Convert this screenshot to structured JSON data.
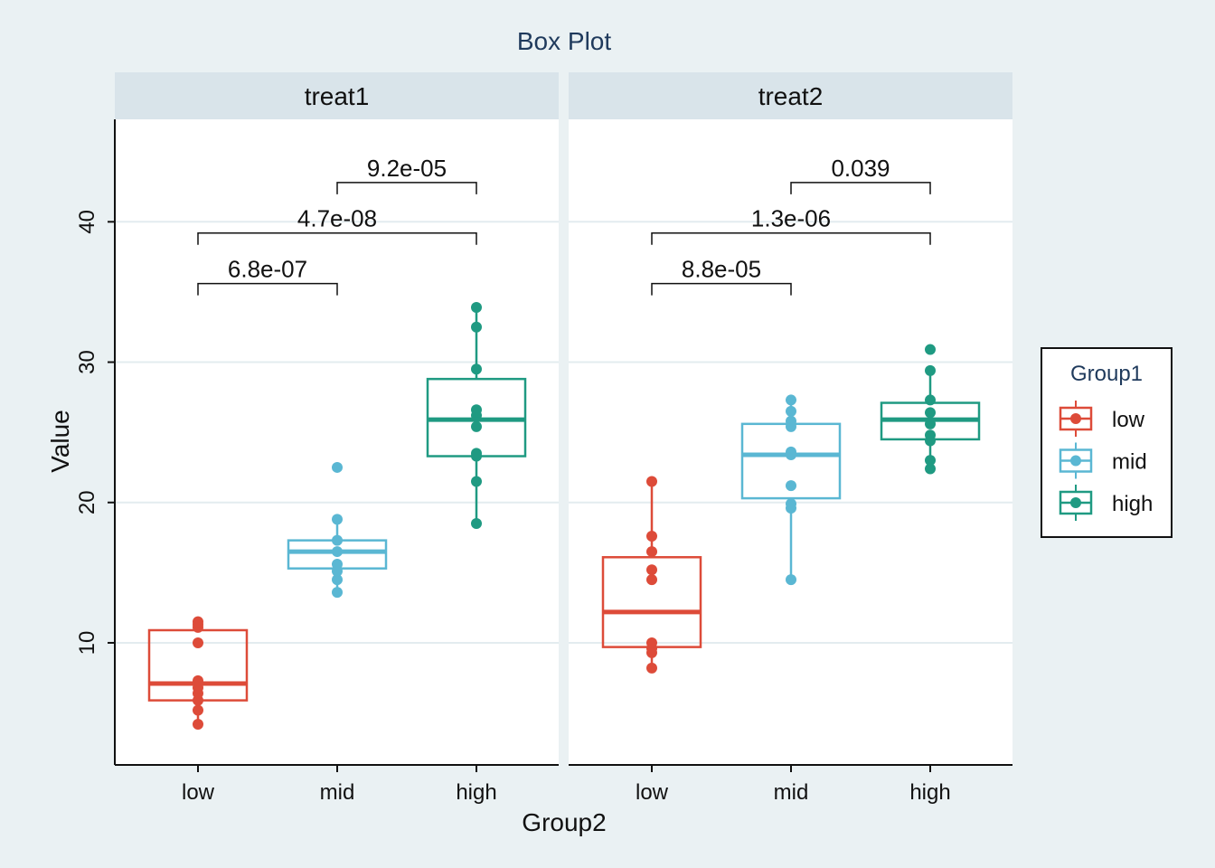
{
  "chart_data": {
    "type": "box",
    "title": "Box Plot",
    "xlabel": "Group2",
    "ylabel": "Value",
    "y_ticks": [
      10,
      20,
      30,
      40
    ],
    "ylim": [
      1.3,
      47.3
    ],
    "grid": "horizontal",
    "categories": [
      "low",
      "mid",
      "high"
    ],
    "legend": {
      "title": "Group1",
      "placement": "right",
      "entries": [
        {
          "label": "low",
          "color": "#dd4b39"
        },
        {
          "label": "mid",
          "color": "#5ab7d3"
        },
        {
          "label": "high",
          "color": "#1f9a82"
        }
      ]
    },
    "colors": {
      "low": "#dd4b39",
      "mid": "#5ab7d3",
      "high": "#1f9a82"
    },
    "panels": [
      {
        "name": "treat1",
        "boxes": [
          {
            "group": "low",
            "q1": 5.9,
            "median": 7.1,
            "q3": 10.9,
            "whisker_low": 4.2,
            "whisker_high": 11.5,
            "points": [
              4.2,
              5.2,
              5.9,
              6.4,
              6.8,
              7.3,
              10.0,
              11.1,
              11.3,
              11.5
            ]
          },
          {
            "group": "mid",
            "q1": 15.3,
            "median": 16.5,
            "q3": 17.3,
            "whisker_low": 13.6,
            "whisker_high": 18.8,
            "points": [
              13.6,
              14.5,
              15.1,
              15.6,
              16.5,
              17.3,
              18.8,
              22.5
            ]
          },
          {
            "group": "high",
            "q1": 23.3,
            "median": 25.9,
            "q3": 28.8,
            "whisker_low": 18.5,
            "whisker_high": 33.9,
            "points": [
              18.5,
              21.5,
              23.3,
              23.5,
              25.4,
              26.2,
              26.6,
              29.5,
              32.5,
              33.9
            ]
          }
        ],
        "comparisons": [
          {
            "from": "low",
            "to": "mid",
            "y": 35.6,
            "label": "6.8e-07"
          },
          {
            "from": "low",
            "to": "high",
            "y": 39.2,
            "label": "4.7e-08"
          },
          {
            "from": "mid",
            "to": "high",
            "y": 42.8,
            "label": "9.2e-05"
          }
        ]
      },
      {
        "name": "treat2",
        "boxes": [
          {
            "group": "low",
            "q1": 9.7,
            "median": 12.2,
            "q3": 16.1,
            "whisker_low": 8.2,
            "whisker_high": 21.5,
            "points": [
              8.2,
              9.3,
              9.6,
              10.0,
              14.5,
              15.2,
              16.5,
              17.6,
              21.5
            ]
          },
          {
            "group": "mid",
            "q1": 20.3,
            "median": 23.4,
            "q3": 25.6,
            "whisker_low": 14.5,
            "whisker_high": 27.3,
            "points": [
              14.5,
              19.6,
              19.9,
              21.2,
              23.4,
              23.6,
              25.4,
              25.8,
              26.5,
              27.3
            ]
          },
          {
            "group": "high",
            "q1": 24.5,
            "median": 25.9,
            "q3": 27.1,
            "whisker_low": 22.4,
            "whisker_high": 29.4,
            "points": [
              22.4,
              23.0,
              24.4,
              24.8,
              25.6,
              26.4,
              27.3,
              29.4,
              30.9
            ]
          }
        ],
        "comparisons": [
          {
            "from": "low",
            "to": "mid",
            "y": 35.6,
            "label": "8.8e-05"
          },
          {
            "from": "low",
            "to": "high",
            "y": 39.2,
            "label": "1.3e-06"
          },
          {
            "from": "mid",
            "to": "high",
            "y": 42.8,
            "label": "0.039"
          }
        ]
      }
    ]
  }
}
